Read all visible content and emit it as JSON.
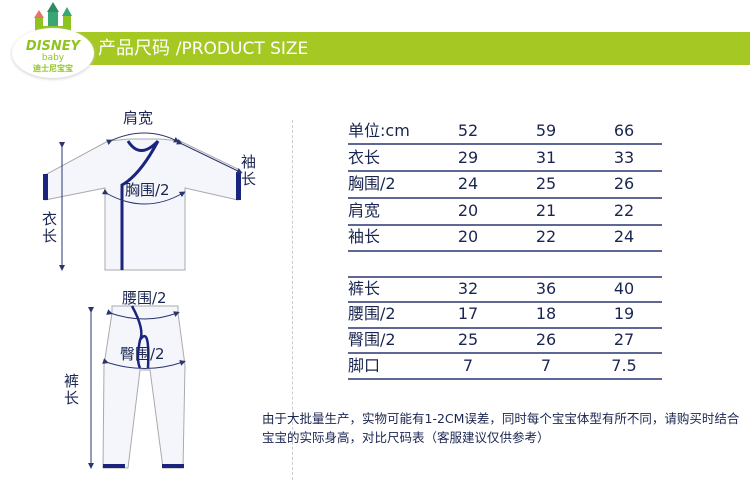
{
  "header": {
    "title_cn": "产品尺码",
    "title_en": "/PRODUCT SIZE",
    "accent": "#a5c823"
  },
  "logo": {
    "brand": "DISNEY",
    "sub": "baby",
    "cn": "迪士尼宝宝"
  },
  "diagram": {
    "shoulder": "肩宽",
    "sleeve": "袖长",
    "chest": "胸围/2",
    "top_length": "衣长",
    "waist": "腰围/2",
    "hip": "臀围/2",
    "pants_length": "裤长"
  },
  "table": {
    "header": [
      "单位:cm",
      "52",
      "59",
      "66"
    ],
    "top_rows": [
      [
        "衣长",
        "29",
        "31",
        "33"
      ],
      [
        "胸围/2",
        "24",
        "25",
        "26"
      ],
      [
        "肩宽",
        "20",
        "21",
        "22"
      ],
      [
        "袖长",
        "20",
        "22",
        "24"
      ]
    ],
    "bottom_rows": [
      [
        "裤长",
        "32",
        "36",
        "40"
      ],
      [
        "腰围/2",
        "17",
        "18",
        "19"
      ],
      [
        "臀围/2",
        "25",
        "26",
        "27"
      ],
      [
        "脚口",
        "7",
        "7",
        "7.5"
      ]
    ]
  },
  "note": "由于大批量生产，实物可能有1-2CM误差，同时每个宝宝体型有所不同，请购买时结合宝宝的实际身高，对比尺码表（客服建议仅供参考）"
}
